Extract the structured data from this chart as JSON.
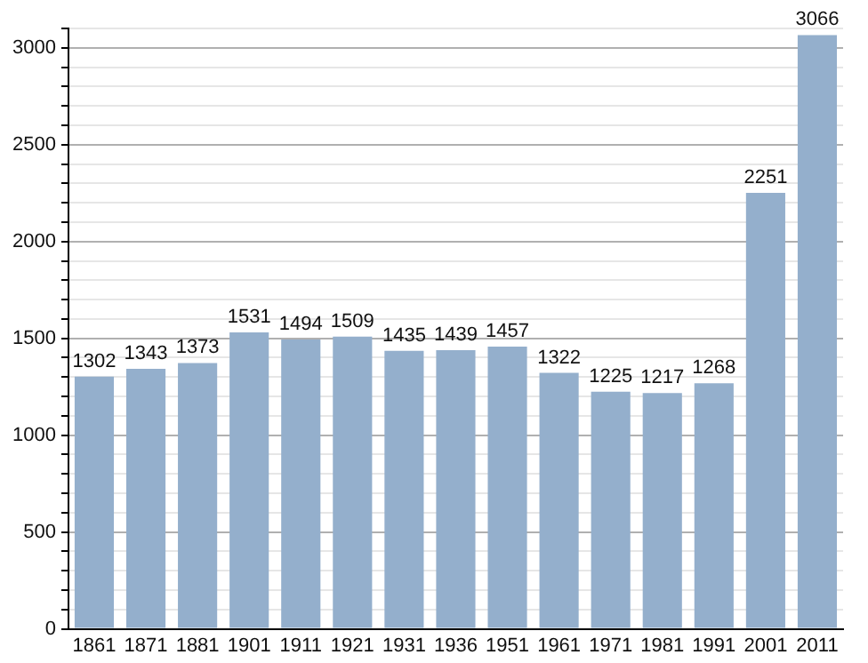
{
  "chart_data": {
    "type": "bar",
    "categories": [
      "1861",
      "1871",
      "1881",
      "1901",
      "1911",
      "1921",
      "1931",
      "1936",
      "1951",
      "1961",
      "1971",
      "1981",
      "1991",
      "2001",
      "2011"
    ],
    "values": [
      1302,
      1343,
      1373,
      1531,
      1494,
      1509,
      1435,
      1439,
      1457,
      1322,
      1225,
      1217,
      1268,
      2251,
      3066
    ],
    "color": "#94afcc",
    "data_labels": true,
    "grid": "y",
    "ylim": [
      0,
      3100
    ],
    "yticks": [
      0,
      {
        "value": 100,
        "label": null
      },
      {
        "value": 200,
        "label": null
      },
      {
        "value": 300,
        "label": null
      },
      {
        "value": 400,
        "label": null
      },
      500,
      {
        "value": 600,
        "label": null
      },
      {
        "value": 700,
        "label": null
      },
      {
        "value": 800,
        "label": null
      },
      {
        "value": 900,
        "label": null
      },
      1000,
      {
        "value": 1100,
        "label": null
      },
      {
        "value": 1200,
        "label": null
      },
      {
        "value": 1300,
        "label": null
      },
      {
        "value": 1400,
        "label": null
      },
      1500,
      {
        "value": 1600,
        "label": null
      },
      {
        "value": 1700,
        "label": null
      },
      {
        "value": 1800,
        "label": null
      },
      {
        "value": 1900,
        "label": null
      },
      2000,
      {
        "value": 2100,
        "label": null
      },
      {
        "value": 2200,
        "label": null
      },
      {
        "value": 2300,
        "label": null
      },
      {
        "value": 2400,
        "label": null
      },
      2500,
      {
        "value": 2600,
        "label": null
      },
      {
        "value": 2700,
        "label": null
      },
      {
        "value": 2800,
        "label": null
      },
      {
        "value": 2900,
        "label": null
      },
      3000,
      {
        "value": 3100,
        "label": null
      }
    ]
  }
}
